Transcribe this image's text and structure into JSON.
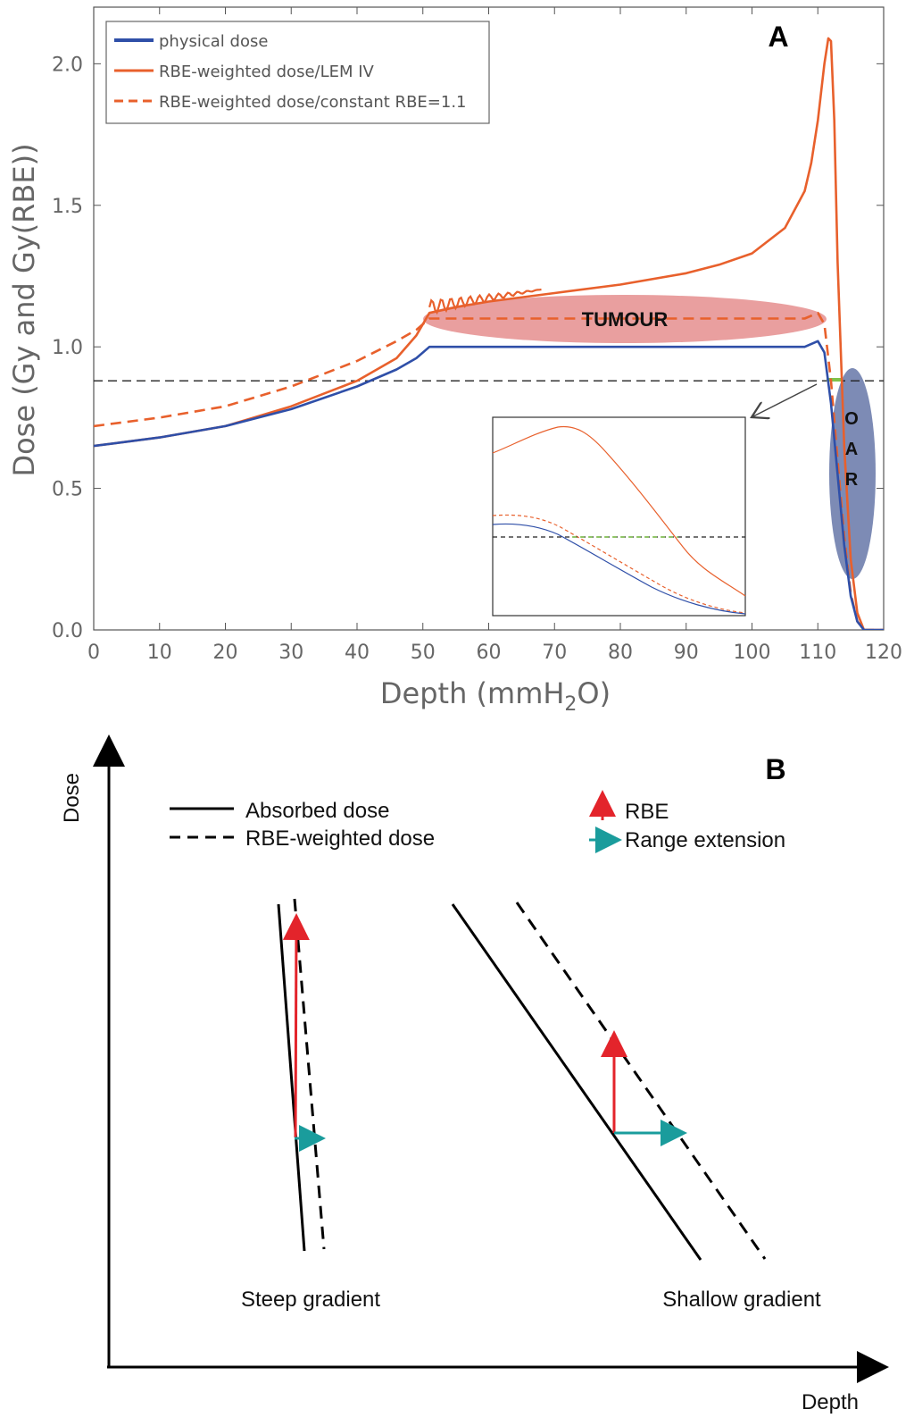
{
  "chart_data": [
    {
      "panel": "A",
      "type": "line",
      "title": "",
      "panel_label": "A",
      "xlabel_main": "Depth (mmH",
      "xlabel_sub": "2",
      "xlabel_end": "O)",
      "ylabel": "Dose (Gy and Gy(RBE))",
      "xlim": [
        0,
        120
      ],
      "ylim": [
        0,
        2.2
      ],
      "xticks": [
        0,
        10,
        20,
        30,
        40,
        50,
        60,
        70,
        80,
        90,
        100,
        110,
        120
      ],
      "yticks": [
        0.0,
        0.5,
        1.0,
        1.5,
        2.0
      ],
      "ytick_labels": [
        "0.0",
        "0.5",
        "1.0",
        "1.5",
        "2.0"
      ],
      "threshold": 0.88,
      "series": [
        {
          "name": "physical dose",
          "color": "#2f4fa8",
          "style": "solid",
          "x": [
            0,
            10,
            20,
            30,
            40,
            46,
            49,
            51,
            60,
            70,
            80,
            90,
            100,
            108,
            110,
            111,
            112,
            113,
            114,
            115,
            116,
            117,
            120
          ],
          "y": [
            0.65,
            0.68,
            0.72,
            0.78,
            0.86,
            0.92,
            0.96,
            1.0,
            1.0,
            1.0,
            1.0,
            1.0,
            1.0,
            1.0,
            1.02,
            0.98,
            0.8,
            0.55,
            0.3,
            0.12,
            0.03,
            0.0,
            0.0
          ]
        },
        {
          "name": "RBE-weighted dose/LEM IV",
          "color": "#e8602c",
          "style": "solid",
          "x": [
            0,
            10,
            20,
            30,
            40,
            46,
            49,
            51,
            55,
            60,
            70,
            80,
            90,
            95,
            100,
            105,
            108,
            109,
            110,
            111,
            111.6,
            112,
            112.5,
            113,
            114,
            115,
            116,
            117,
            120
          ],
          "y": [
            0.65,
            0.68,
            0.72,
            0.79,
            0.88,
            0.96,
            1.04,
            1.12,
            1.14,
            1.16,
            1.19,
            1.22,
            1.26,
            1.29,
            1.33,
            1.42,
            1.55,
            1.65,
            1.8,
            2.0,
            2.09,
            2.08,
            1.8,
            1.3,
            0.65,
            0.25,
            0.06,
            0.0,
            0.0
          ]
        },
        {
          "name": "RBE-weighted dose/constant RBE=1.1",
          "color": "#e8602c",
          "style": "dashed",
          "x": [
            0,
            10,
            20,
            30,
            40,
            46,
            49,
            51,
            60,
            70,
            80,
            90,
            100,
            108,
            110,
            111,
            112,
            113,
            114,
            115,
            116,
            117,
            120
          ],
          "y": [
            0.72,
            0.75,
            0.79,
            0.86,
            0.95,
            1.02,
            1.06,
            1.1,
            1.1,
            1.1,
            1.1,
            1.1,
            1.1,
            1.1,
            1.12,
            1.08,
            0.88,
            0.6,
            0.33,
            0.13,
            0.03,
            0.0,
            0.0
          ]
        }
      ],
      "annotations": {
        "tumour": "TUMOUR",
        "oar": [
          "O",
          "A",
          "R"
        ]
      },
      "inset": {
        "description_none": "",
        "threshold_line_color": "#7fc24a"
      }
    },
    {
      "panel": "B",
      "type": "diagram",
      "panel_label": "B",
      "xlabel": "Depth",
      "ylabel": "Dose",
      "legend": [
        {
          "label": "Absorbed dose",
          "style": "solid"
        },
        {
          "label": "RBE-weighted dose",
          "style": "dashed"
        },
        {
          "label": "RBE",
          "color": "#e3242b"
        },
        {
          "label": "Range extension",
          "color": "#1a9c9c"
        }
      ],
      "captions": {
        "steep": "Steep gradient",
        "shallow": "Shallow gradient"
      }
    }
  ],
  "colors": {
    "physical": "#2f4fa8",
    "rbe": "#e8602c",
    "tumour_fill": "#e07a7a",
    "oar_fill": "#6677a8",
    "rbe_arrow": "#e3242b",
    "range_arrow": "#1a9c9c"
  }
}
